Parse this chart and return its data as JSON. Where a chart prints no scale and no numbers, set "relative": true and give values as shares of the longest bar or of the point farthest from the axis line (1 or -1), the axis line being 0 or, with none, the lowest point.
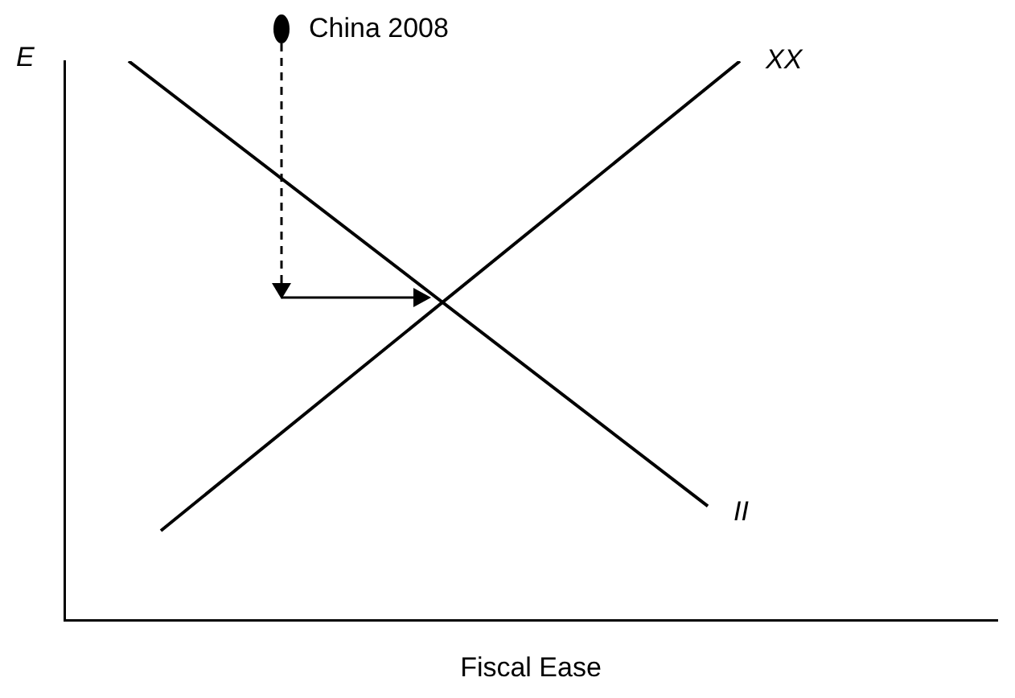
{
  "chart_data": {
    "type": "line",
    "relative": true,
    "xlabel": "Fiscal Ease",
    "ylabel": "E",
    "annotations": [
      "China 2008"
    ],
    "categories": [
      null,
      null,
      null,
      null,
      null,
      null,
      null,
      null,
      null,
      null,
      null,
      null,
      null,
      null,
      null,
      null,
      null,
      null,
      null,
      null,
      null,
      null,
      null,
      null,
      null,
      null,
      null,
      null,
      null,
      null
    ],
    "series": [
      {
        "name": "II",
        "color": "#000000",
        "values": [
          null,
          null,
          1,
          null,
          null,
          null,
          null,
          null,
          null,
          null,
          null,
          null,
          null,
          null,
          null,
          null,
          null,
          null,
          null,
          null,
          0.204,
          null,
          null,
          null,
          null,
          null,
          null,
          null,
          null,
          null
        ]
      },
      {
        "name": "XX",
        "color": "#000000",
        "values": [
          null,
          null,
          null,
          0.16,
          null,
          null,
          null,
          null,
          null,
          null,
          null,
          null,
          null,
          null,
          null,
          null,
          null,
          null,
          null,
          null,
          null,
          1,
          null,
          null,
          null,
          null,
          null,
          null,
          null,
          null
        ]
      }
    ]
  }
}
